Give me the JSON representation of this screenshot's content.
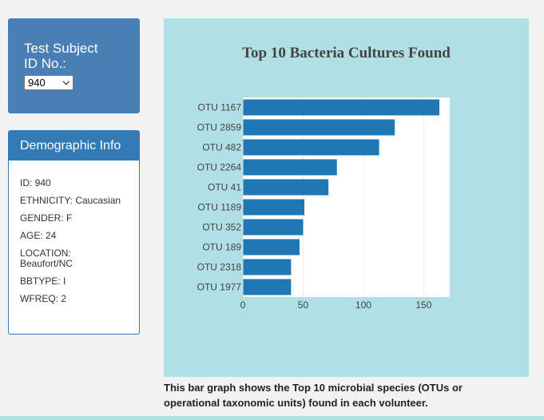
{
  "subject": {
    "title_line1": "Test Subject",
    "title_line2": "ID No.:",
    "selected_id": "940"
  },
  "demographic": {
    "heading": "Demographic Info",
    "rows": [
      "ID: 940",
      "ETHNICITY: Caucasian",
      "GENDER: F",
      "AGE: 24",
      "LOCATION: Beaufort/NC",
      "BBTYPE: I",
      "WFREQ: 2"
    ]
  },
  "caption": "This bar graph shows the Top 10 microbial species (OTUs or operational taxonomic units) found in each volunteer.",
  "colors": {
    "bar": "#1f77b4",
    "panel_bg": "#b0dfe5",
    "plot_bg": "#ffffff"
  },
  "chart_data": {
    "type": "bar",
    "orientation": "horizontal",
    "title": "Top 10 Bacteria Cultures Found",
    "categories": [
      "OTU 1167",
      "OTU 2859",
      "OTU 482",
      "OTU 2264",
      "OTU 41",
      "OTU 1189",
      "OTU 352",
      "OTU 189",
      "OTU 2318",
      "OTU 1977"
    ],
    "values": [
      163,
      126,
      113,
      78,
      71,
      51,
      50,
      47,
      40,
      40
    ],
    "xticks": [
      0,
      50,
      100,
      150
    ],
    "xlim": [
      0,
      171.6
    ],
    "grid": true
  }
}
